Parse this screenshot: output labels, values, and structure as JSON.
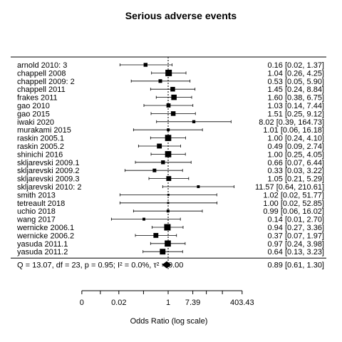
{
  "chart_data": {
    "type": "forest",
    "title": "Serious adverse events",
    "xlabel": "Odds Ratio (log scale)",
    "x_scale": "log",
    "x_ticks": [
      "0",
      "0.02",
      "1",
      "7.39",
      "403.43"
    ],
    "x_tick_values": [
      0.00091,
      0.0183,
      1,
      7.389,
      403.43
    ],
    "studies": [
      {
        "label": "arnold 2010: 3",
        "or": 0.16,
        "lo": 0.02,
        "hi": 1.37,
        "text": "0.16 [0.02,  1.37]"
      },
      {
        "label": "chappell 2008",
        "or": 1.04,
        "lo": 0.26,
        "hi": 4.25,
        "text": "1.04 [0.26,  4.25]"
      },
      {
        "label": "chappell 2009: 2",
        "or": 0.53,
        "lo": 0.05,
        "hi": 5.9,
        "text": "0.53 [0.05,  5.90]"
      },
      {
        "label": "chappell 2011",
        "or": 1.45,
        "lo": 0.24,
        "hi": 8.84,
        "text": "1.45 [0.24,  8.84]"
      },
      {
        "label": "frakes 2011",
        "or": 1.6,
        "lo": 0.38,
        "hi": 6.75,
        "text": "1.60 [0.38,  6.75]"
      },
      {
        "label": "gao 2010",
        "or": 1.03,
        "lo": 0.14,
        "hi": 7.44,
        "text": "1.03 [0.14,  7.44]"
      },
      {
        "label": "gao 2015",
        "or": 1.51,
        "lo": 0.25,
        "hi": 9.12,
        "text": "1.51 [0.25,  9.12]"
      },
      {
        "label": "iwaki 2020",
        "or": 8.02,
        "lo": 0.39,
        "hi": 164.73,
        "text": "8.02 [0.39, 164.73]"
      },
      {
        "label": "murakami 2015",
        "or": 1.01,
        "lo": 0.06,
        "hi": 16.18,
        "text": "1.01 [0.06, 16.18]"
      },
      {
        "label": "raskin 2005.1",
        "or": 1.0,
        "lo": 0.24,
        "hi": 4.1,
        "text": "1.00 [0.24,  4.10]"
      },
      {
        "label": "raskin 2005.2",
        "or": 0.49,
        "lo": 0.09,
        "hi": 2.74,
        "text": "0.49 [0.09,  2.74]"
      },
      {
        "label": "shinichi 2016",
        "or": 1.0,
        "lo": 0.25,
        "hi": 4.05,
        "text": "1.00 [0.25,  4.05]"
      },
      {
        "label": "skljarevski 2009.1",
        "or": 0.66,
        "lo": 0.07,
        "hi": 6.44,
        "text": "0.66 [0.07,  6.44]"
      },
      {
        "label": "skljarevski 2009.2",
        "or": 0.33,
        "lo": 0.03,
        "hi": 3.22,
        "text": "0.33 [0.03,  3.22]"
      },
      {
        "label": "skljarevski 2009.3",
        "or": 1.05,
        "lo": 0.21,
        "hi": 5.29,
        "text": "1.05 [0.21,  5.29]"
      },
      {
        "label": "skljarevski 2010: 2",
        "or": 11.57,
        "lo": 0.64,
        "hi": 210.61,
        "text": "11.57 [0.64, 210.61]"
      },
      {
        "label": "smith 2013",
        "or": 1.02,
        "lo": 0.02,
        "hi": 51.77,
        "text": "1.02 [0.02, 51.77]"
      },
      {
        "label": "tetreault 2018",
        "or": 1.0,
        "lo": 0.02,
        "hi": 52.85,
        "text": "1.00 [0.02, 52.85]"
      },
      {
        "label": "uchio 2018",
        "or": 0.99,
        "lo": 0.06,
        "hi": 16.02,
        "text": "0.99 [0.06, 16.02]"
      },
      {
        "label": "wang 2017",
        "or": 0.14,
        "lo": 0.01,
        "hi": 2.7,
        "text": "0.14 [0.01,  2.70]"
      },
      {
        "label": "wernicke 2006.1",
        "or": 0.94,
        "lo": 0.27,
        "hi": 3.36,
        "text": "0.94 [0.27,  3.36]"
      },
      {
        "label": "wernicke 2006.2",
        "or": 0.37,
        "lo": 0.07,
        "hi": 1.97,
        "text": "0.37 [0.07,  1.97]"
      },
      {
        "label": "yasuda 2011.1",
        "or": 0.97,
        "lo": 0.24,
        "hi": 3.98,
        "text": "0.97 [0.24,  3.98]"
      },
      {
        "label": "yasuda 2011.2",
        "or": 0.64,
        "lo": 0.13,
        "hi": 3.23,
        "text": "0.64 [0.13,  3.23]"
      }
    ],
    "study_weights": [
      1.0,
      2.0,
      0.9,
      1.3,
      1.6,
      1.1,
      1.3,
      0.7,
      0.6,
      1.9,
      1.4,
      1.9,
      1.0,
      0.9,
      1.4,
      0.6,
      0.3,
      0.3,
      0.6,
      0.6,
      2.0,
      1.4,
      1.9,
      1.7
    ],
    "summary": {
      "label": "Q = 13.07, df = 23, p = 0.95; I² = 0.0%, τ² = 0.00",
      "or": 0.89,
      "lo": 0.61,
      "hi": 1.3,
      "text": "0.89 [0.61,  1.30]"
    },
    "reference_line": 1
  }
}
